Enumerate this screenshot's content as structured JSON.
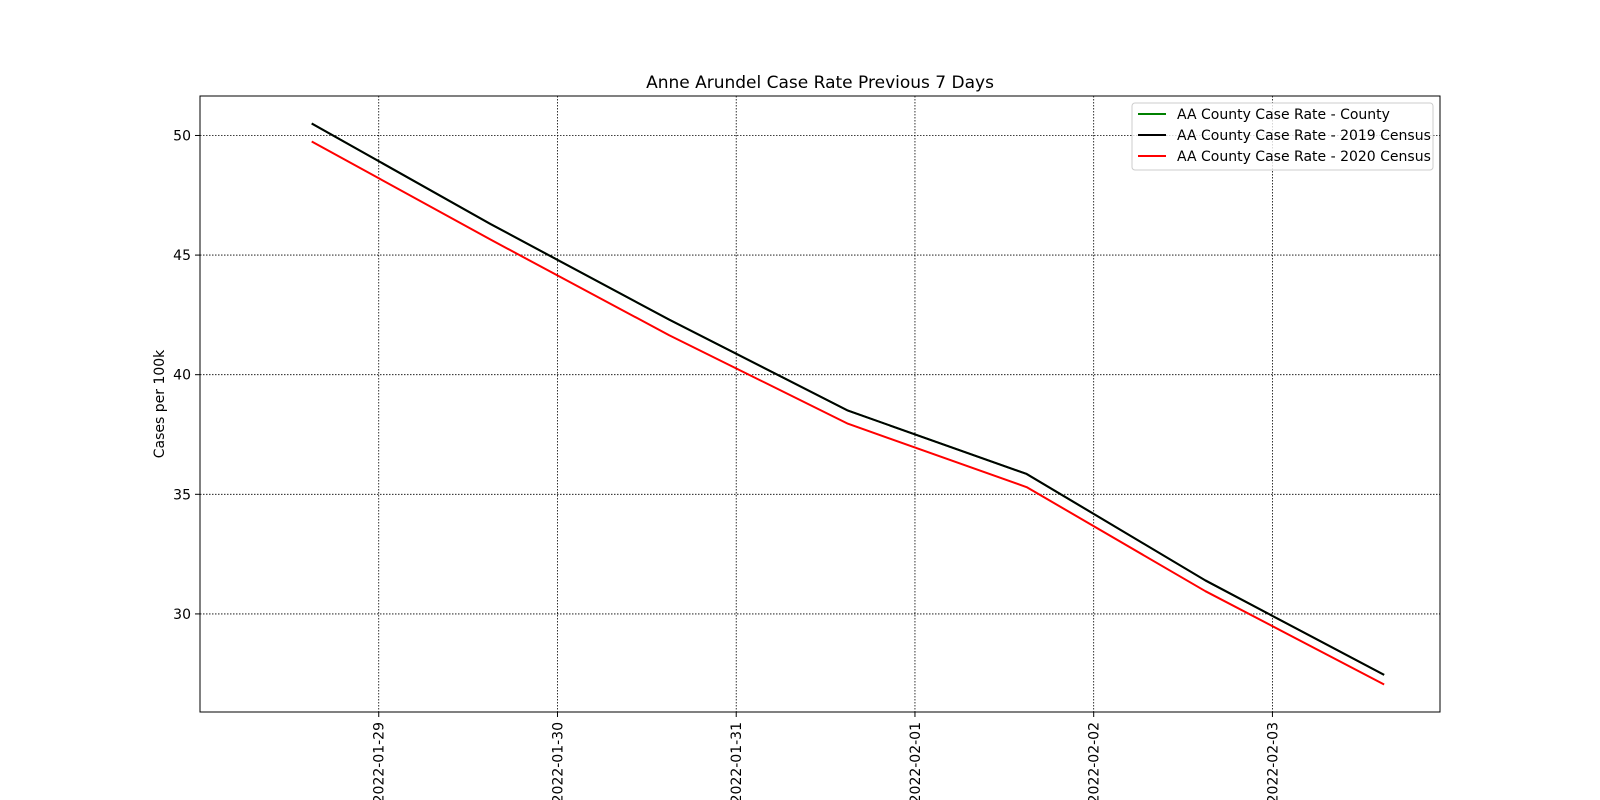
{
  "chart_data": {
    "type": "line",
    "title": "Anne Arundel Case Rate Previous 7 Days",
    "xlabel": "",
    "ylabel": "Cases per 100k",
    "x": [
      "2022-01-28T15:00",
      "2022-01-29T15:00",
      "2022-01-30T15:00",
      "2022-01-31T15:00",
      "2022-02-01T15:00",
      "2022-02-02T15:00",
      "2022-02-03T15:00"
    ],
    "xticks": [
      "2022-01-29",
      "2022-01-30",
      "2022-01-31",
      "2022-02-01",
      "2022-02-02",
      "2022-02-03"
    ],
    "xlim": [
      "2022-01-28T00:00",
      "2022-02-03T22:30"
    ],
    "yticks": [
      30,
      35,
      40,
      45,
      50
    ],
    "ylim": [
      25.9,
      51.65
    ],
    "grid": true,
    "legend_position": "top-right",
    "series": [
      {
        "name": "AA County Case Rate - County",
        "color": "#008000",
        "values": [
          50.5,
          46.3,
          42.3,
          38.5,
          35.85,
          31.4,
          27.45
        ]
      },
      {
        "name": "AA County Case Rate - 2019 Census",
        "color": "#000000",
        "values": [
          50.5,
          46.3,
          42.3,
          38.5,
          35.85,
          31.4,
          27.45
        ]
      },
      {
        "name": "AA County Case Rate - 2020 Census",
        "color": "#ff0000",
        "values": [
          49.75,
          45.65,
          41.65,
          37.95,
          35.3,
          30.95,
          27.05
        ]
      }
    ]
  }
}
